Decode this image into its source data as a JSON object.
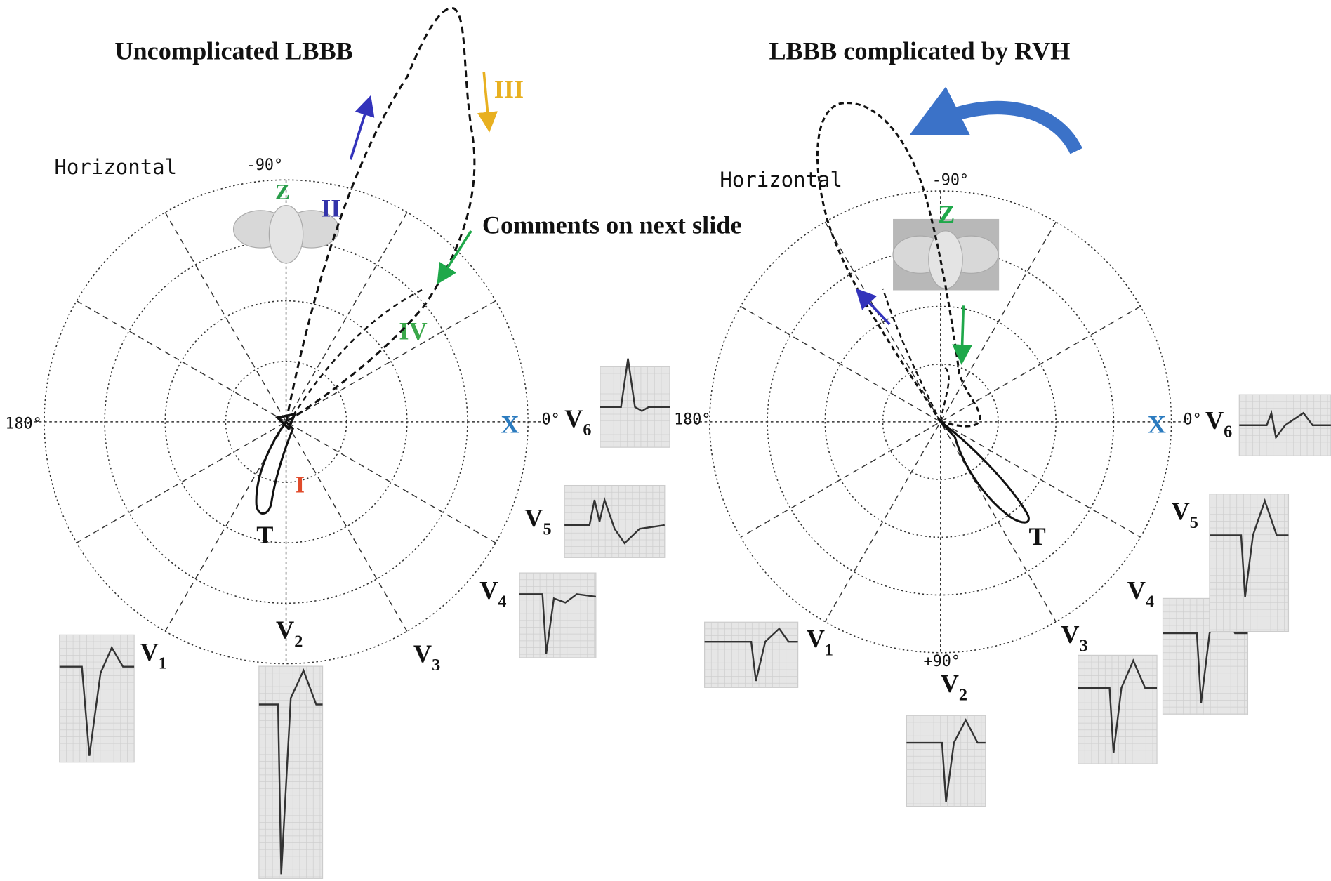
{
  "note": "Comments on next slide",
  "left_panel": {
    "title": "Uncomplicated LBBB",
    "plane_label": "Horizontal",
    "angles": {
      "top": "-90°",
      "left": "180°",
      "right": "0°"
    },
    "axes": {
      "z": "Z",
      "x": "X"
    },
    "loop_labels": {
      "i": "I",
      "ii": "II",
      "iii": "III",
      "iv": "IV"
    },
    "t_label": "T",
    "leads": [
      {
        "main": "V",
        "sub": "1"
      },
      {
        "main": "V",
        "sub": "2"
      },
      {
        "main": "V",
        "sub": "3"
      },
      {
        "main": "V",
        "sub": "4"
      },
      {
        "main": "V",
        "sub": "5"
      },
      {
        "main": "V",
        "sub": "6"
      }
    ]
  },
  "right_panel": {
    "title": "LBBB complicated by RVH",
    "plane_label": "Horizontal",
    "angles": {
      "top": "-90°",
      "left": "180°",
      "right": "0°",
      "bottom": "+90°"
    },
    "axes": {
      "z": "Z",
      "x": "X"
    },
    "t_label": "T",
    "leads": [
      {
        "main": "V",
        "sub": "1"
      },
      {
        "main": "V",
        "sub": "2"
      },
      {
        "main": "V",
        "sub": "3"
      },
      {
        "main": "V",
        "sub": "4"
      },
      {
        "main": "V",
        "sub": "5"
      },
      {
        "main": "V",
        "sub": "6"
      }
    ]
  }
}
